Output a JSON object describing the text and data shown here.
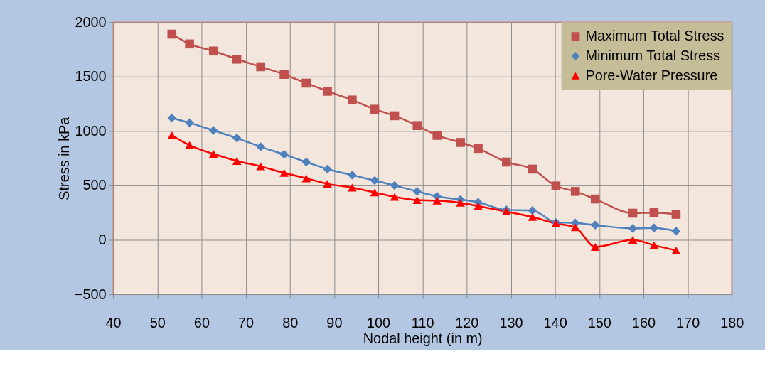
{
  "chart_data": {
    "type": "line",
    "xlabel": "Nodal height (in m)",
    "ylabel": "Stress in kPa",
    "x": [
      53.3,
      57.3,
      62.7,
      68,
      73.4,
      78.7,
      83.7,
      88.5,
      94.1,
      99.2,
      103.7,
      108.8,
      113.3,
      118.6,
      122.6,
      129,
      134.9,
      140.2,
      144.6,
      149.1,
      157.6,
      162.4,
      167.4
    ],
    "series": [
      {
        "name": "Maximum Total Stress",
        "color": "#c0504d",
        "marker": "square",
        "values": [
          1890,
          1800,
          1735,
          1660,
          1590,
          1520,
          1440,
          1365,
          1285,
          1200,
          1140,
          1050,
          960,
          895,
          840,
          715,
          650,
          495,
          445,
          375,
          245,
          250,
          235
        ]
      },
      {
        "name": "Minimum Total Stress",
        "color": "#4f81bd",
        "marker": "diamond",
        "values": [
          1120,
          1075,
          1005,
          935,
          855,
          785,
          715,
          650,
          595,
          545,
          500,
          445,
          400,
          370,
          345,
          275,
          270,
          160,
          155,
          135,
          105,
          110,
          80
        ]
      },
      {
        "name": "Pore-Water Pressure",
        "color": "#ff0000",
        "marker": "triangle",
        "values": [
          960,
          870,
          790,
          725,
          675,
          615,
          565,
          515,
          480,
          435,
          395,
          365,
          360,
          340,
          310,
          260,
          210,
          150,
          115,
          -65,
          0,
          -50,
          -97
        ]
      }
    ],
    "xlim": [
      40,
      180
    ],
    "xticks": [
      40,
      50,
      60,
      70,
      80,
      90,
      100,
      110,
      120,
      130,
      140,
      150,
      160,
      170,
      180
    ],
    "ylim": [
      -500,
      2000
    ],
    "yticks": [
      -500,
      0,
      500,
      1000,
      1500,
      2000
    ],
    "grid": true,
    "legend": "top right"
  }
}
